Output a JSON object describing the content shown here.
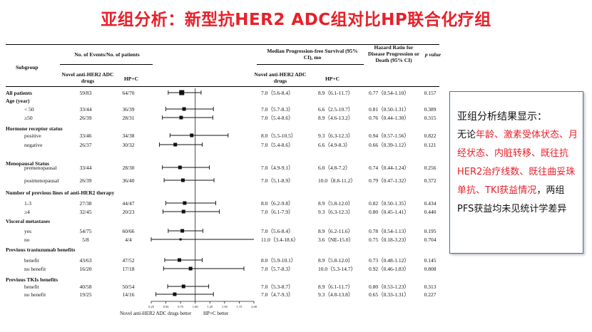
{
  "title": "亚组分析：新型抗HER2 ADC组对比HP联合化疗组",
  "table": {
    "headers": {
      "subgroup": "Subgroup",
      "events": "No. of Events/No. of patients",
      "adc_col": "Novel anti-HER2 ADC drugs",
      "hpc_col": "HP+C",
      "mpfs": "Median Progression-free Survival (95% CI), mo",
      "mpfs_adc": "Novel anti-HER2 ADC drugs",
      "mpfs_hpc": "HP+C",
      "hr": "Hazard Ratio for Disease Progression or Death (95% CI)",
      "p": "p value"
    },
    "rows": [
      {
        "label": "All patients",
        "section": true,
        "ev_adc": "59/83",
        "ev_hpc": "64/70",
        "mpfs_adc": "7.0（5.6-8.4）",
        "mpfs_hpc": "8.9（6.1-11.7）",
        "hr_text": "0.77（0.54-1.10）",
        "p": "0.157"
      },
      {
        "label": "Age (year)",
        "section": true
      },
      {
        "label": "< 50",
        "ev_adc": "33/44",
        "ev_hpc": "36/39",
        "mpfs_adc": "7.0（5.7-8.3）",
        "mpfs_hpc": "6.6（2.5-10.7）",
        "hr_text": "0.81（0.50-1.31）",
        "p": "0.389"
      },
      {
        "label": "≥50",
        "ev_adc": "26/39",
        "ev_hpc": "28/31",
        "mpfs_adc": "7.0（5.4-8.6）",
        "mpfs_hpc": "8.9（4.6-13.2）",
        "hr_text": "0.76（0.44-1.30）",
        "p": "0.315"
      },
      {
        "label": "Hormone receptor status",
        "section": true
      },
      {
        "label": "positive",
        "ev_adc": "33/46",
        "ev_hpc": "34/38",
        "mpfs_adc": "8.0（5.5-10.5）",
        "mpfs_hpc": "9.3（6.3-12.3）",
        "hr_text": "0.94（0.57-1.56）",
        "p": "0.822"
      },
      {
        "label": "negative",
        "ev_adc": "26/37",
        "ev_hpc": "30/32",
        "mpfs_adc": "7.0（5.4-8.6）",
        "mpfs_hpc": "6.6（4.9-8.3）",
        "hr_text": "0.66（0.39-1.12）",
        "p": "0.121"
      },
      {
        "label": "Menopausal Status",
        "section": true
      },
      {
        "label": "premenopausal",
        "ev_adc": "33/44",
        "ev_hpc": "28/30",
        "mpfs_adc": "7.0（4.9-9.1）",
        "mpfs_hpc": "6.0（4.8-7.2）",
        "hr_text": "0.74（0.44-1.24）",
        "p": "0.256"
      },
      {
        "label": "postmenopausal",
        "ev_adc": "26/39",
        "ev_hpc": "36/40",
        "mpfs_adc": "7.0（5.1-8.9）",
        "mpfs_hpc": "10.0（8.8-11.2）",
        "hr_text": "0.79（0.47-1.32）",
        "p": "0.372"
      },
      {
        "label": "Number of previous lines of anti-HER2 therapy",
        "section": true
      },
      {
        "label": "1-3",
        "ev_adc": "27/38",
        "ev_hpc": "44/47",
        "mpfs_adc": "8.0（6.2-9.8）",
        "mpfs_hpc": "8.9（5.8-12.0）",
        "hr_text": "0.82（0.50-1.35）",
        "p": "0.434"
      },
      {
        "label": "≥4",
        "ev_adc": "32/45",
        "ev_hpc": "20/23",
        "mpfs_adc": "7.0（6.1-7.9）",
        "mpfs_hpc": "9.3（6.3-12.3）",
        "hr_text": "0.80（0.45-1.41）",
        "p": "0.440"
      },
      {
        "label": "Visceral metastases",
        "section": true
      },
      {
        "label": "yes",
        "ev_adc": "54/75",
        "ev_hpc": "60/66",
        "mpfs_adc": "7.0（5.6-8.4）",
        "mpfs_hpc": "8.9（6.2-11.6）",
        "hr_text": "0.78（0.54-1.13）",
        "p": "0.195"
      },
      {
        "label": "no",
        "ev_adc": "5/8",
        "ev_hpc": "4/4",
        "mpfs_adc": "11.0（3.4-18.6）",
        "mpfs_hpc": "3.6（NE-15.0）",
        "hr_text": "0.75（0.18-3.23）",
        "p": "0.704"
      },
      {
        "label": "Previous trastuzumab benefits",
        "section": true
      },
      {
        "label": "benefit",
        "ev_adc": "43/63",
        "ev_hpc": "47/52",
        "mpfs_adc": "8.0（5.9-10.1）",
        "mpfs_hpc": "8.9（5.8-12.0）",
        "hr_text": "0.73（0.48-1.12）",
        "p": "0.145"
      },
      {
        "label": "no benefit",
        "ev_adc": "16/20",
        "ev_hpc": "17/18",
        "mpfs_adc": "7.0（5.7-8.3）",
        "mpfs_hpc": "10.0（5.3-14.7）",
        "hr_text": "0.92（0.46-1.83）",
        "p": "0.808"
      },
      {
        "label": "Previous TKIs benefits",
        "section": true
      },
      {
        "label": "benefit",
        "ev_adc": "40/58",
        "ev_hpc": "50/54",
        "mpfs_adc": "7.0（5.3-8.7）",
        "mpfs_hpc": "8.9（6.1-11.7）",
        "hr_text": "0.80（0.53-1.23）",
        "p": "0.313"
      },
      {
        "label": "no benefit",
        "ev_adc": "19/25",
        "ev_hpc": "14/16",
        "mpfs_adc": "7.0（4.7-9.3）",
        "mpfs_hpc": "9.3（4.8-13.8）",
        "hr_text": "0.65（0.33-1.31）",
        "p": "0.227"
      }
    ]
  },
  "chart_data": {
    "type": "forest",
    "x_ticks": [
      "0.25",
      "0.50",
      "0.75",
      "1.00",
      "1.25",
      "1.50",
      "1.75",
      "2.00"
    ],
    "xlim": [
      0.25,
      2.0
    ],
    "reference_line": 1.0,
    "left_label": "Novel anti-HER2 ADC drugs better",
    "right_label": "HP+C better",
    "points": [
      {
        "subgroup": "All patients",
        "hr": 0.77,
        "lo": 0.54,
        "hi": 1.1
      },
      {
        "subgroup": "< 50",
        "hr": 0.81,
        "lo": 0.5,
        "hi": 1.31
      },
      {
        "subgroup": "≥50",
        "hr": 0.76,
        "lo": 0.44,
        "hi": 1.3
      },
      {
        "subgroup": "positive",
        "hr": 0.94,
        "lo": 0.57,
        "hi": 1.56
      },
      {
        "subgroup": "negative",
        "hr": 0.66,
        "lo": 0.39,
        "hi": 1.12
      },
      {
        "subgroup": "premenopausal",
        "hr": 0.74,
        "lo": 0.44,
        "hi": 1.24
      },
      {
        "subgroup": "postmenopausal",
        "hr": 0.79,
        "lo": 0.47,
        "hi": 1.32
      },
      {
        "subgroup": "1-3",
        "hr": 0.82,
        "lo": 0.5,
        "hi": 1.35
      },
      {
        "subgroup": "≥4",
        "hr": 0.8,
        "lo": 0.45,
        "hi": 1.41
      },
      {
        "subgroup": "yes",
        "hr": 0.78,
        "lo": 0.54,
        "hi": 1.13
      },
      {
        "subgroup": "no",
        "hr": 0.75,
        "lo": 0.18,
        "hi": 3.23
      },
      {
        "subgroup": "benefit",
        "hr": 0.73,
        "lo": 0.48,
        "hi": 1.12
      },
      {
        "subgroup": "no benefit",
        "hr": 0.92,
        "lo": 0.46,
        "hi": 1.83
      },
      {
        "subgroup": "benefit",
        "hr": 0.8,
        "lo": 0.53,
        "hi": 1.23
      },
      {
        "subgroup": "no benefit",
        "hr": 0.65,
        "lo": 0.33,
        "hi": 1.31
      }
    ]
  },
  "panel": {
    "heading": "亚组分析结果显示：",
    "lead": "无论",
    "red1": "年龄、激素受体状态、月经状态、内脏转移、既往抗HER2治疗线数、既往曲妥珠单抗、TKI获益情况",
    "tail": "，两组PFS获益均未见统计学差异",
    "accent_color": "#e8202a",
    "border_color": "#4a6ea8"
  }
}
